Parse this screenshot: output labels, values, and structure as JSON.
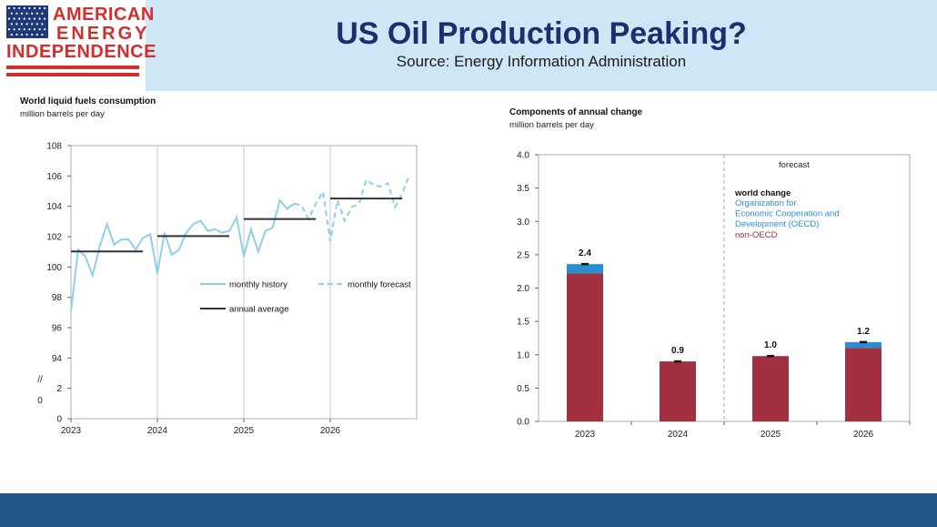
{
  "header": {
    "title": "US Oil Production Peaking?",
    "subtitle": "Source: Energy Information Administration",
    "logo": {
      "line1": "AMERICAN",
      "line2": "ENERGY",
      "line3": "INDEPENDENCE"
    },
    "colors": {
      "band": "#cfe6f6",
      "title": "#1a2f6b",
      "brand": "#d22e2e",
      "footer": "#26578a"
    }
  },
  "chart_data": [
    {
      "type": "line",
      "title": "World liquid fuels consumption",
      "subtitle": "million barrels per day",
      "x_ticks": [
        "2023",
        "2024",
        "2025",
        "2026"
      ],
      "y_ticks": [
        "108",
        "106",
        "104",
        "102",
        "100",
        "98",
        "96",
        "94",
        "2",
        "0"
      ],
      "axis_break": "//",
      "axis_break_zero": "0",
      "ylim": [
        92,
        108
      ],
      "legend": [
        {
          "name": "monthly history",
          "style": "solid",
          "color": "#8fd0e8"
        },
        {
          "name": "monthly forecast",
          "style": "dashed",
          "color": "#8fd0e8"
        },
        {
          "name": "annual average",
          "style": "solid",
          "color": "#333333"
        }
      ],
      "series": [
        {
          "name": "monthly history",
          "x": [
            2023.0,
            2023.083,
            2023.167,
            2023.25,
            2023.333,
            2023.417,
            2023.5,
            2023.583,
            2023.667,
            2023.75,
            2023.833,
            2023.917,
            2024.0,
            2024.083,
            2024.167,
            2024.25,
            2024.333,
            2024.417,
            2024.5,
            2024.583,
            2024.667,
            2024.75,
            2024.833,
            2024.917,
            2025.0,
            2025.083,
            2025.167,
            2025.25,
            2025.333,
            2025.417,
            2025.5,
            2025.583
          ],
          "y": [
            98.3,
            101.9,
            101.5,
            100.4,
            102.1,
            103.4,
            102.2,
            102.5,
            102.5,
            101.9,
            102.6,
            102.8,
            100.5,
            102.9,
            101.6,
            101.9,
            102.9,
            103.4,
            103.6,
            103.0,
            103.1,
            102.9,
            103.0,
            103.8,
            101.5,
            103.1,
            101.8,
            103.0,
            103.2,
            104.8,
            104.3,
            104.6
          ]
        },
        {
          "name": "monthly forecast",
          "x": [
            2025.583,
            2025.667,
            2025.75,
            2025.833,
            2025.917,
            2026.0,
            2026.083,
            2026.167,
            2026.25,
            2026.333,
            2026.417,
            2026.5,
            2026.583,
            2026.667,
            2026.75,
            2026.833,
            2026.917
          ],
          "y": [
            104.6,
            104.5,
            103.7,
            104.6,
            105.3,
            102.4,
            104.8,
            103.6,
            104.4,
            104.6,
            106.0,
            105.7,
            105.6,
            105.8,
            104.4,
            105.2,
            106.3
          ]
        },
        {
          "name": "annual average",
          "segments": [
            {
              "x": [
                2023.0,
                2023.833
              ],
              "y": 101.8
            },
            {
              "x": [
                2024.0,
                2024.833
              ],
              "y": 102.7
            },
            {
              "x": [
                2025.0,
                2025.833
              ],
              "y": 103.7
            },
            {
              "x": [
                2026.0,
                2026.833
              ],
              "y": 104.9
            }
          ]
        }
      ]
    },
    {
      "type": "bar",
      "stacked": true,
      "title": "Components of annual change",
      "subtitle": "million barrels per day",
      "categories": [
        "2023",
        "2024",
        "2025",
        "2026"
      ],
      "y_ticks": [
        "4.0",
        "3.5",
        "3.0",
        "2.5",
        "2.0",
        "1.5",
        "1.0",
        "0.5",
        "0.0"
      ],
      "ylim": [
        0,
        4.0
      ],
      "forecast_label": "forecast",
      "forecast_divider_after": "2024",
      "totals": [
        2.36,
        0.9,
        0.98,
        1.19
      ],
      "total_labels": [
        "2.4",
        "0.9",
        "1.0",
        "1.2"
      ],
      "series": [
        {
          "name": "non-OECD",
          "color": "#a33040",
          "values": [
            2.22,
            0.9,
            0.98,
            1.1
          ]
        },
        {
          "name": "Organization for Economic Cooperation and Development (OECD)",
          "color": "#2b8fcf",
          "values": [
            0.14,
            0.0,
            0.0,
            0.09
          ]
        }
      ],
      "legend": {
        "world": "world change",
        "oecd_lines": [
          "Organization for",
          "Economic Cooperation and",
          "Development (OECD)"
        ],
        "non_oecd": "non-OECD",
        "colors": {
          "world": "#111111",
          "oecd": "#2b8fcf",
          "non_oecd": "#a33040"
        }
      }
    }
  ]
}
